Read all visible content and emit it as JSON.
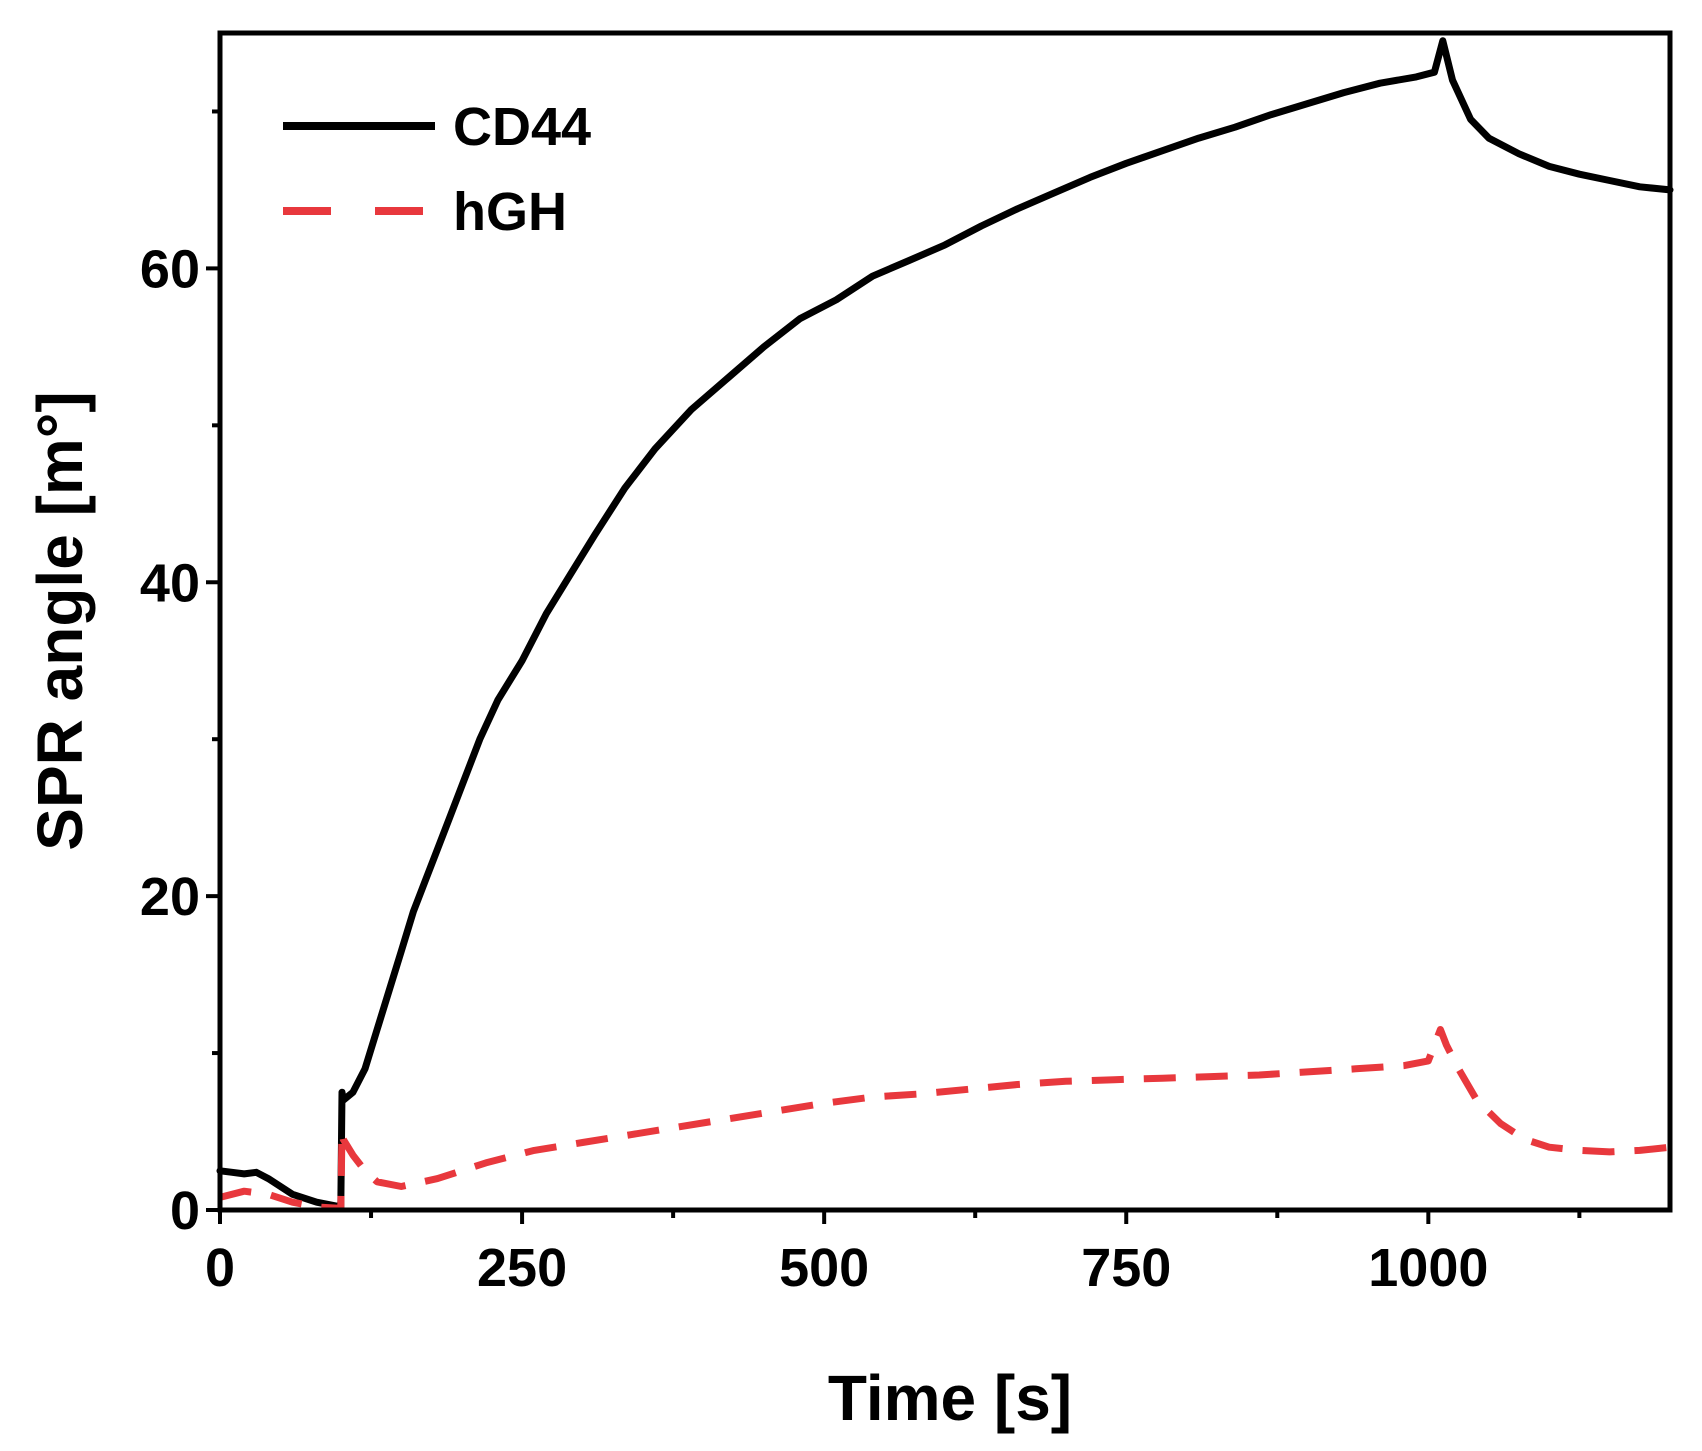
{
  "chart_data": {
    "type": "line",
    "title": "",
    "xlabel": "Time [s]",
    "ylabel": "SPR angle [m°]",
    "xlim": [
      0,
      1200
    ],
    "ylim": [
      0,
      75
    ],
    "xticks": [
      0,
      250,
      500,
      750,
      1000
    ],
    "xtick_labels": [
      "0",
      "250",
      "500",
      "750",
      "1000"
    ],
    "x_minor_ticks": [
      125,
      375,
      625,
      875,
      1125
    ],
    "yticks": [
      0,
      20,
      40,
      60
    ],
    "ytick_labels": [
      "0",
      "20",
      "40",
      "60"
    ],
    "y_minor_ticks": [
      10,
      30,
      50,
      70
    ],
    "grid": false,
    "legend_position": "top-left",
    "series": [
      {
        "name": "CD44",
        "style": "solid",
        "color": "#000000",
        "x": [
          0,
          10,
          20,
          30,
          40,
          60,
          80,
          100,
          101,
          102,
          110,
          120,
          130,
          140,
          150,
          160,
          170,
          180,
          190,
          200,
          215,
          230,
          250,
          270,
          290,
          310,
          335,
          360,
          390,
          420,
          450,
          480,
          510,
          540,
          570,
          600,
          630,
          660,
          690,
          720,
          750,
          780,
          810,
          840,
          870,
          900,
          930,
          960,
          990,
          1005,
          1012,
          1020,
          1035,
          1050,
          1075,
          1100,
          1125,
          1150,
          1175,
          1200
        ],
        "y": [
          2.5,
          2.4,
          2.3,
          2.4,
          2.0,
          1.0,
          0.5,
          0.2,
          7.5,
          7.0,
          7.5,
          9.0,
          11.5,
          14.0,
          16.5,
          19.0,
          21.0,
          23.0,
          25.0,
          27.0,
          30.0,
          32.5,
          35.0,
          38.0,
          40.5,
          43.0,
          46.0,
          48.5,
          51.0,
          53.0,
          55.0,
          56.8,
          58.0,
          59.5,
          60.5,
          61.5,
          62.7,
          63.8,
          64.8,
          65.8,
          66.7,
          67.5,
          68.3,
          69.0,
          69.8,
          70.5,
          71.2,
          71.8,
          72.2,
          72.5,
          74.5,
          72.0,
          69.5,
          68.3,
          67.3,
          66.5,
          66.0,
          65.6,
          65.2,
          65.0
        ]
      },
      {
        "name": "hGH",
        "style": "dashed",
        "color": "#e8383d",
        "x": [
          0,
          20,
          40,
          60,
          80,
          100,
          101,
          102,
          110,
          120,
          130,
          150,
          180,
          220,
          260,
          300,
          340,
          380,
          420,
          460,
          500,
          540,
          580,
          620,
          660,
          700,
          740,
          780,
          820,
          860,
          900,
          940,
          980,
          1000,
          1010,
          1015,
          1025,
          1040,
          1060,
          1080,
          1100,
          1125,
          1150,
          1175,
          1200
        ],
        "y": [
          0.8,
          1.2,
          1.0,
          0.5,
          0.2,
          0.1,
          5.0,
          4.5,
          3.5,
          2.5,
          1.8,
          1.5,
          2.0,
          3.0,
          3.8,
          4.3,
          4.8,
          5.3,
          5.8,
          6.3,
          6.8,
          7.2,
          7.4,
          7.7,
          8.0,
          8.2,
          8.3,
          8.4,
          8.5,
          8.6,
          8.8,
          9.0,
          9.2,
          9.5,
          11.5,
          10.5,
          9.0,
          7.0,
          5.5,
          4.5,
          4.0,
          3.8,
          3.7,
          3.8,
          4.0
        ]
      }
    ]
  }
}
